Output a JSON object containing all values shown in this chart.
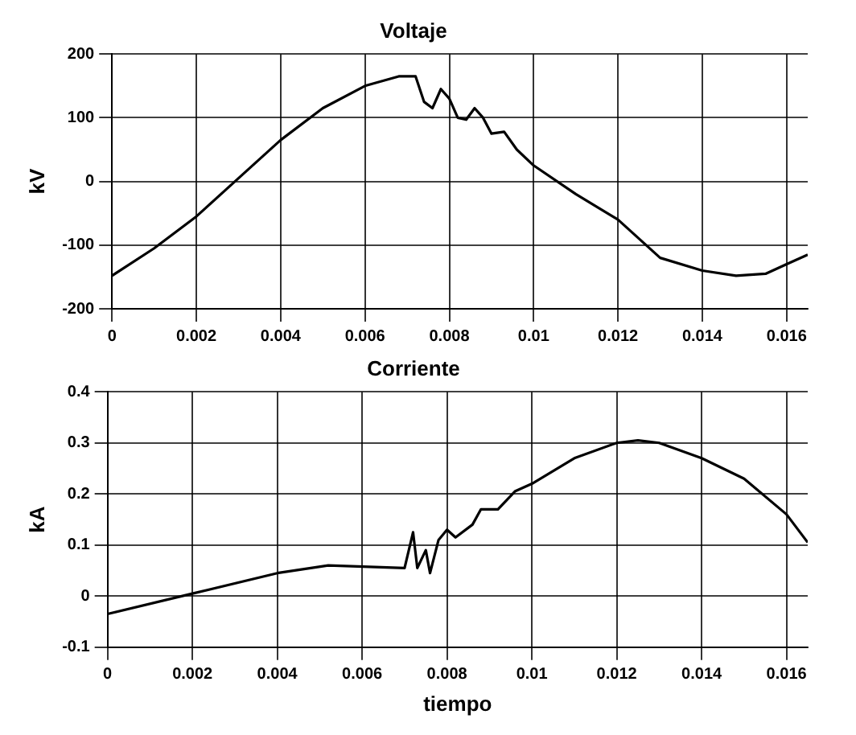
{
  "chart_data": [
    {
      "type": "line",
      "title": "Voltaje",
      "ylabel": "kV",
      "xlim": [
        0,
        0.0165
      ],
      "xticks": [
        0,
        0.002,
        0.004,
        0.006,
        0.008,
        0.01,
        0.012,
        0.014,
        0.016
      ],
      "ylim": [
        -200,
        200
      ],
      "yticks": [
        -200,
        -100,
        0,
        100,
        200
      ],
      "grid": true,
      "marker": "none",
      "line_style": "solid",
      "series": [
        {
          "color": "#000000",
          "x": [
            0,
            0.001,
            0.002,
            0.003,
            0.004,
            0.005,
            0.006,
            0.0068,
            0.0072,
            0.0074,
            0.0076,
            0.0078,
            0.008,
            0.0082,
            0.0084,
            0.0086,
            0.0088,
            0.009,
            0.0093,
            0.0096,
            0.01,
            0.011,
            0.012,
            0.013,
            0.014,
            0.0148,
            0.0155,
            0.016,
            0.0165
          ],
          "values": [
            -148,
            -105,
            -55,
            5,
            65,
            115,
            150,
            165,
            165,
            125,
            115,
            145,
            130,
            100,
            97,
            115,
            100,
            75,
            78,
            50,
            25,
            -20,
            -60,
            -120,
            -140,
            -148,
            -145,
            -130,
            -115
          ]
        }
      ]
    },
    {
      "type": "line",
      "title": "Corriente",
      "xlabel": "tiempo",
      "ylabel": "kA",
      "xlim": [
        0,
        0.0165
      ],
      "xticks": [
        0,
        0.002,
        0.004,
        0.006,
        0.008,
        0.01,
        0.012,
        0.014,
        0.016
      ],
      "ylim": [
        -0.1,
        0.4
      ],
      "yticks": [
        -0.1,
        0,
        0.1,
        0.2,
        0.3,
        0.4
      ],
      "grid": true,
      "marker": "none",
      "line_style": "solid",
      "series": [
        {
          "color": "#000000",
          "x": [
            0,
            0.002,
            0.004,
            0.0052,
            0.007,
            0.0072,
            0.0073,
            0.0075,
            0.0076,
            0.0078,
            0.008,
            0.0082,
            0.0086,
            0.0088,
            0.0092,
            0.0096,
            0.01,
            0.011,
            0.012,
            0.0125,
            0.013,
            0.014,
            0.015,
            0.016,
            0.0165
          ],
          "values": [
            -0.035,
            0.005,
            0.045,
            0.06,
            0.055,
            0.125,
            0.055,
            0.09,
            0.045,
            0.11,
            0.13,
            0.115,
            0.14,
            0.17,
            0.17,
            0.205,
            0.22,
            0.27,
            0.3,
            0.305,
            0.3,
            0.27,
            0.23,
            0.16,
            0.105
          ]
        }
      ]
    }
  ]
}
